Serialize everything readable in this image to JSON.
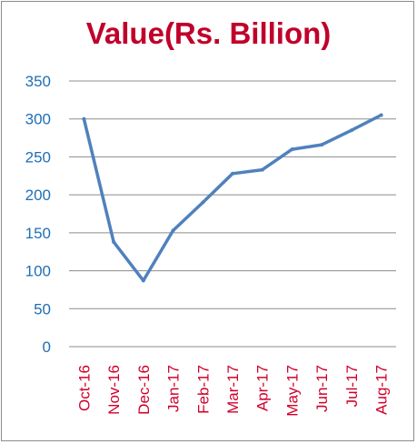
{
  "chart_data": {
    "type": "line",
    "title": "Value(Rs. Billion)",
    "xlabel": "",
    "ylabel": "",
    "categories": [
      "Oct-16",
      "Nov-16",
      "Dec-16",
      "Jan-17",
      "Feb-17",
      "Mar-17",
      "Apr-17",
      "May-17",
      "Jun-17",
      "Jul-17",
      "Aug-17"
    ],
    "values": [
      300,
      138,
      87,
      153,
      190,
      228,
      233,
      260,
      266,
      285,
      305
    ],
    "ylim": [
      0,
      350
    ],
    "yticks": [
      "0",
      "50",
      "100",
      "150",
      "200",
      "250",
      "300",
      "350"
    ],
    "grid": true,
    "legend": "none",
    "colors": {
      "line": "#4f81bd",
      "title": "#c0002a",
      "xtick": "#d0002a",
      "ytick": "#1f6fb5",
      "grid": "#8c8c8c"
    }
  }
}
